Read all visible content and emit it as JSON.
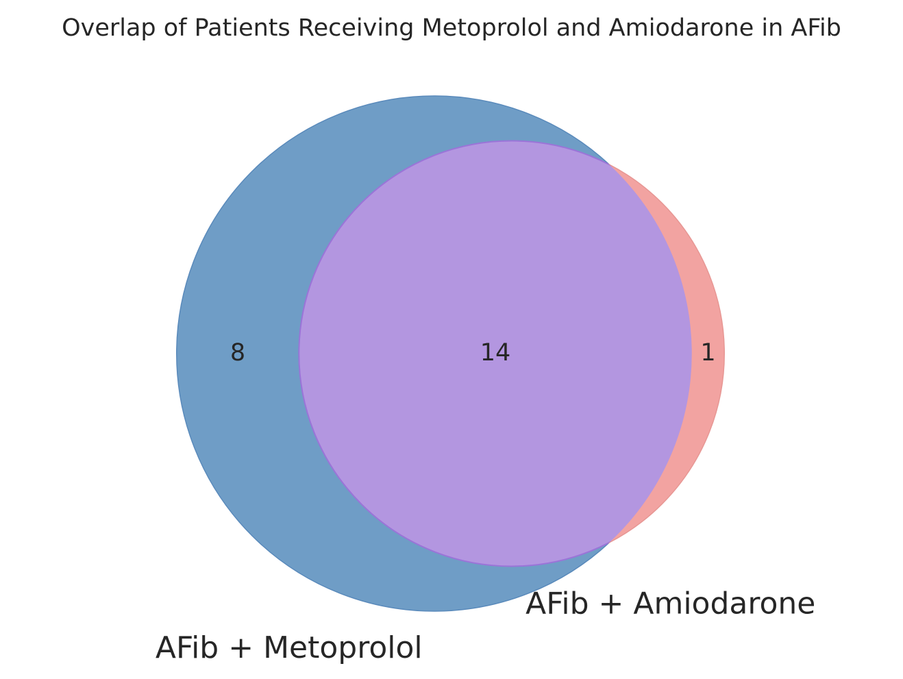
{
  "chart_data": {
    "type": "venn",
    "title": "Overlap of Patients Receiving Metoprolol and Amiodarone in AFib",
    "sets": [
      {
        "name": "AFib + Metoprolol",
        "color": "#6f9dc6"
      },
      {
        "name": "AFib + Amiodarone",
        "color": "#f2a3a1"
      }
    ],
    "values": [
      8,
      1,
      14
    ],
    "overlap_color": "#b396e0"
  }
}
